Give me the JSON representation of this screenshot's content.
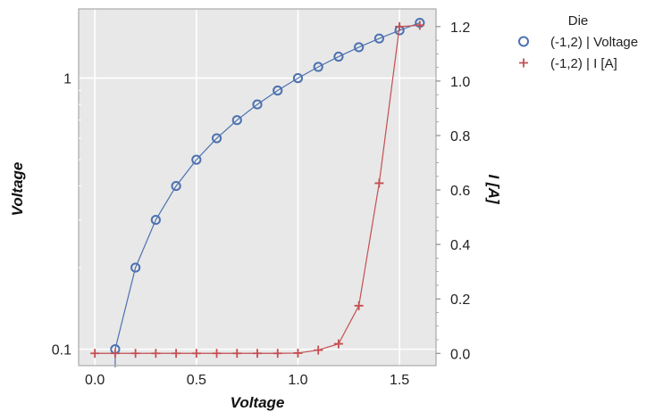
{
  "chart_data": {
    "type": "line",
    "xlabel": "Voltage",
    "ylabel_left": "Voltage",
    "ylabel_right": "I [A]",
    "xlim": [
      -0.08,
      1.68
    ],
    "ylim_left": [
      0.087,
      1.8
    ],
    "yscale_left": "log",
    "ylim_right": [
      -0.045,
      1.265
    ],
    "yscale_right": "linear",
    "x_ticks": [
      "0.0",
      "0.5",
      "1.0",
      "1.5"
    ],
    "x_tick_values": [
      0,
      0.5,
      1.0,
      1.5
    ],
    "y_left_ticks": [
      "0.1",
      "1"
    ],
    "y_left_tick_values": [
      0.1,
      1
    ],
    "y_right_ticks": [
      "0.0",
      "0.2",
      "0.4",
      "0.6",
      "0.8",
      "1.0",
      "1.2"
    ],
    "y_right_tick_values": [
      0,
      0.2,
      0.4,
      0.6,
      0.8,
      1.0,
      1.2
    ],
    "grid": true,
    "background": "#e8e8e8",
    "legend": {
      "title": "Die",
      "placement": "outside-top-right",
      "entries": [
        "(-1,2) | Voltage",
        "(-1,2) | I [A]"
      ]
    },
    "series": [
      {
        "name": "(-1,2) | Voltage",
        "axis": "left",
        "marker": "open-circle",
        "color": "#4c72b0",
        "x": [
          0.1,
          0.2,
          0.3,
          0.4,
          0.5,
          0.6,
          0.7,
          0.8,
          0.9,
          1.0,
          1.1,
          1.2,
          1.3,
          1.4,
          1.5,
          1.6
        ],
        "y": [
          0.1,
          0.2,
          0.3,
          0.4,
          0.5,
          0.6,
          0.7,
          0.8,
          0.9,
          1.0,
          1.1,
          1.2,
          1.3,
          1.4,
          1.5,
          1.6
        ]
      },
      {
        "name": "(-1,2) | I [A]",
        "axis": "right",
        "marker": "plus",
        "color": "#c44e52",
        "x": [
          0.0,
          0.1,
          0.2,
          0.3,
          0.4,
          0.5,
          0.6,
          0.7,
          0.8,
          0.9,
          1.0,
          1.1,
          1.2,
          1.3,
          1.4,
          1.5,
          1.6
        ],
        "y": [
          0.0,
          0.0,
          0.0,
          0.0,
          0.0,
          0.0,
          0.0,
          0.0,
          0.0,
          0.0,
          0.001,
          0.012,
          0.035,
          0.175,
          0.625,
          1.2,
          1.205
        ]
      }
    ]
  }
}
